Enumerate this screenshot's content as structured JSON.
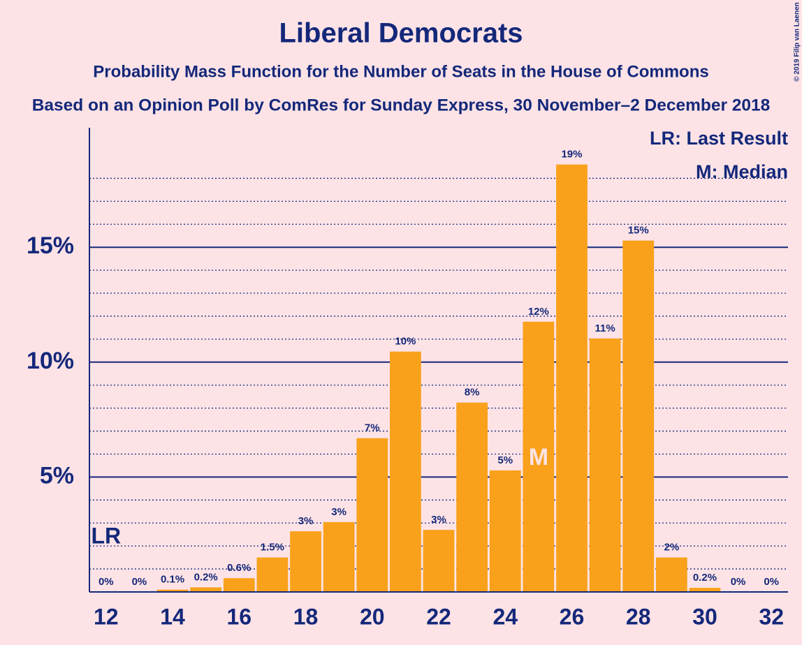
{
  "chart_data": {
    "type": "bar",
    "title": "Liberal Democrats",
    "subtitle": "Probability Mass Function for the Number of Seats in the House of Commons",
    "subtitle2": "Based on an Opinion Poll by ComRes for Sunday Express, 30 November–2 December 2018",
    "copyright": "© 2019 Filip van Laenen",
    "x": [
      12,
      13,
      14,
      15,
      16,
      17,
      18,
      19,
      20,
      21,
      22,
      23,
      24,
      25,
      26,
      27,
      28,
      29,
      30,
      31,
      32
    ],
    "values": [
      0,
      0,
      0.1,
      0.2,
      0.6,
      1.5,
      2.64,
      3.04,
      6.69,
      10.46,
      2.7,
      8.24,
      5.29,
      11.76,
      18.6,
      11.03,
      15.29,
      1.5,
      0.18,
      0,
      0
    ],
    "value_labels": [
      "0%",
      "0%",
      "0.1%",
      "0.2%",
      "0.6%",
      "1.5%",
      "3%",
      "3%",
      "7%",
      "10%",
      "3%",
      "8%",
      "5%",
      "12%",
      "19%",
      "11%",
      "15%",
      "2%",
      "0.2%",
      "0%",
      "0%"
    ],
    "color": "#f9a11b",
    "xlim": [
      11.5,
      32.5
    ],
    "xticks": [
      12,
      14,
      16,
      18,
      20,
      22,
      24,
      26,
      28,
      30,
      32
    ],
    "ylim": [
      0,
      20.2
    ],
    "yticks": [
      {
        "value": 5,
        "label": "5%"
      },
      {
        "value": 10,
        "label": "10%"
      },
      {
        "value": 15,
        "label": "15%"
      }
    ],
    "minor_yticks": [
      1,
      2,
      3,
      4,
      6,
      7,
      8,
      9,
      11,
      12,
      13,
      14,
      16,
      17,
      18
    ],
    "grid": true,
    "last_result": {
      "x": 12,
      "label": "LR"
    },
    "median": {
      "x": 25,
      "label": "M"
    },
    "legend": [
      "LR: Last Result",
      "M: Median"
    ]
  }
}
